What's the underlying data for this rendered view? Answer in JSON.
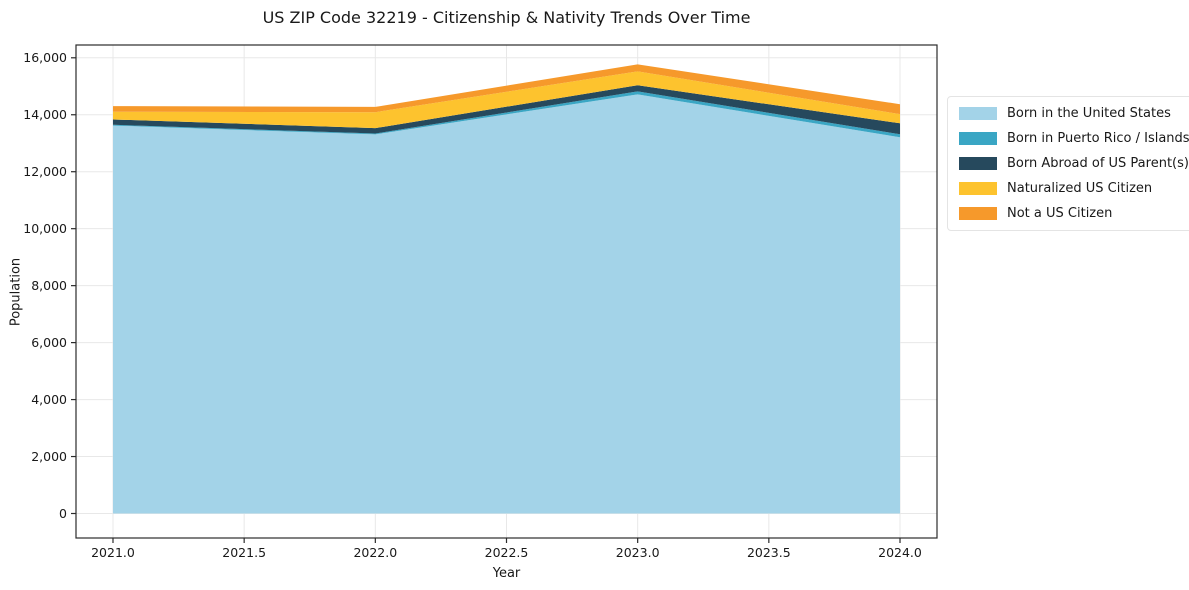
{
  "chart": {
    "title": "US ZIP Code 32219 - Citizenship & Nativity Trends Over Time",
    "xlabel": "Year",
    "ylabel": "Population"
  },
  "chart_data": {
    "type": "area",
    "stacked": true,
    "title": "US ZIP Code 32219 - Citizenship & Nativity Trends Over Time",
    "xlabel": "Year",
    "ylabel": "Population",
    "x": [
      2021,
      2022,
      2023,
      2024
    ],
    "series": [
      {
        "name": "Born in the United States",
        "color": "#a3d3e8",
        "values": [
          13620,
          13310,
          14715,
          13210
        ]
      },
      {
        "name": "Born in Puerto Rico / Islands",
        "color": "#3aa6c4",
        "values": [
          30,
          30,
          105,
          105
        ]
      },
      {
        "name": "Born Abroad of US Parent(s)",
        "color": "#26495d",
        "values": [
          185,
          190,
          215,
          385
        ]
      },
      {
        "name": "Naturalized US Citizen",
        "color": "#fdc32e",
        "values": [
          270,
          560,
          490,
          320
        ]
      },
      {
        "name": "Not a US Citizen",
        "color": "#f6992b",
        "values": [
          200,
          185,
          245,
          350
        ]
      }
    ],
    "stacked_totals": [
      14305,
      14275,
      15770,
      14370
    ],
    "xticks": {
      "values": [
        2021.0,
        2021.5,
        2022.0,
        2022.5,
        2023.0,
        2023.5,
        2024.0
      ],
      "labels": [
        "2021.0",
        "2021.5",
        "2022.0",
        "2022.5",
        "2023.0",
        "2023.5",
        "2024.0"
      ]
    },
    "yticks": {
      "values": [
        0,
        2000,
        4000,
        6000,
        8000,
        10000,
        12000,
        14000,
        16000
      ],
      "labels": [
        "0",
        "2,000",
        "4,000",
        "6,000",
        "8,000",
        "10,000",
        "12,000",
        "14,000",
        "16,000"
      ]
    },
    "xlim": [
      2020.859,
      2024.141
    ],
    "ylim": [
      -860,
      16449
    ],
    "grid": true,
    "legend_position": "outside-right",
    "style": {
      "grid_color": "#e8e8e8",
      "spine_color": "#2b2b2b",
      "text_color": "#191919",
      "background": "#ffffff"
    }
  }
}
